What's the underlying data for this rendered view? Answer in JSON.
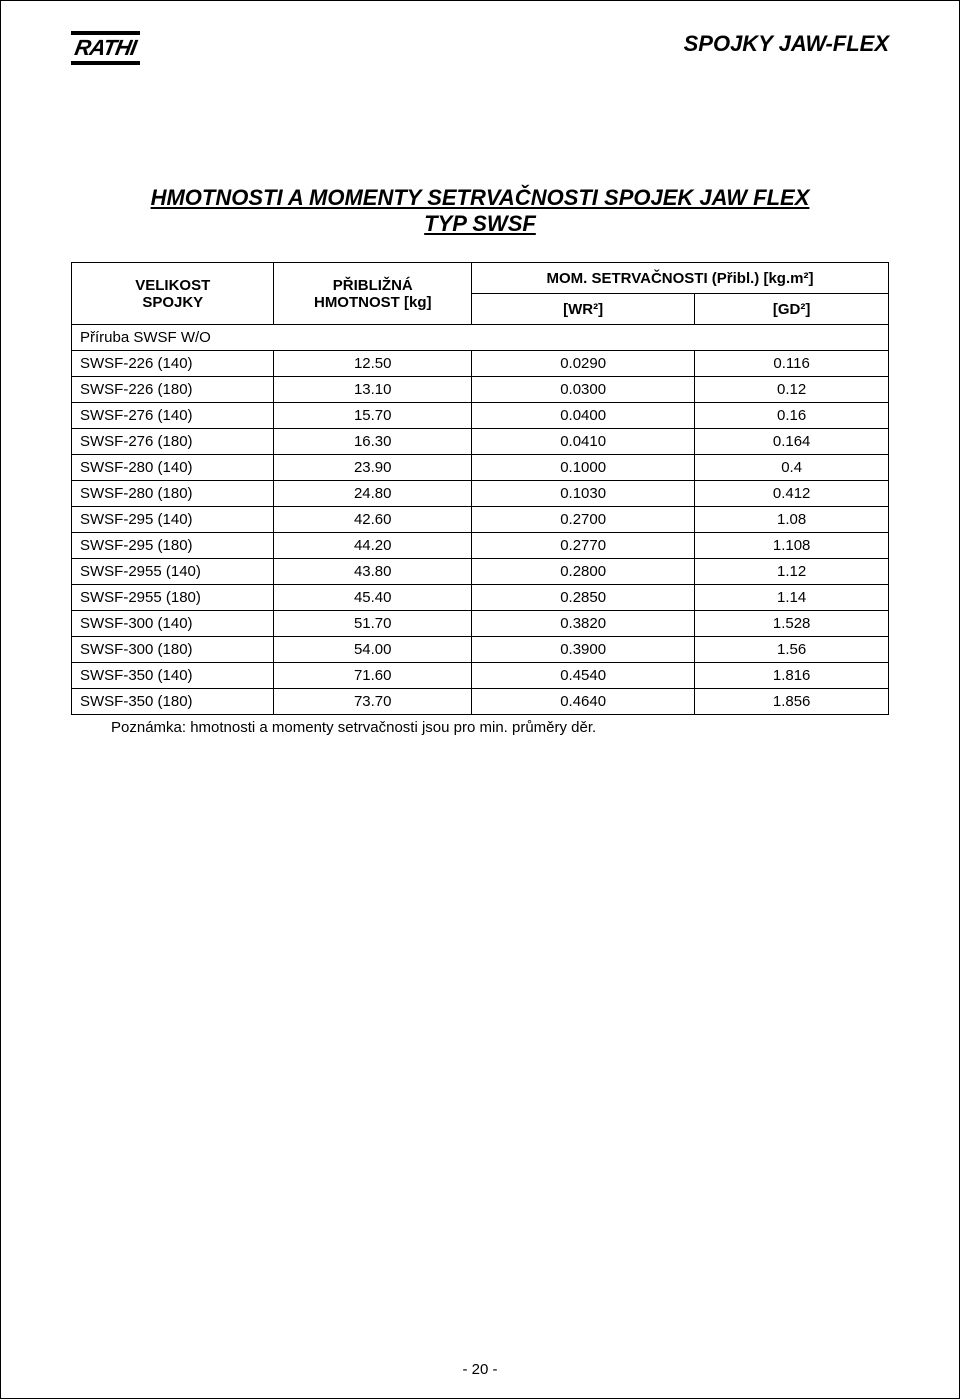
{
  "header": {
    "logo_text": "RATHI",
    "doc_title": "SPOJKY JAW-FLEX"
  },
  "section": {
    "line1": "HMOTNOSTI A MOMENTY SETRVAČNOSTI SPOJEK JAW FLEX",
    "line2": "TYP SWSF"
  },
  "table": {
    "header": {
      "col1_a": "VELIKOST",
      "col1_b": "SPOJKY",
      "col2_a": "PŘIBLIŽNÁ",
      "col2_b": "HMOTNOST  [kg]",
      "col34_top": "MOM. SETRVAČNOSTI (Přibl.)  [kg.m²]",
      "col3": "[WR²]",
      "col4": "[GD²]"
    },
    "group_row": "Příruba SWSF W/O",
    "rows": [
      {
        "c1": "SWSF-226 (140)",
        "c2": "12.50",
        "c3": "0.0290",
        "c4": "0.116"
      },
      {
        "c1": "SWSF-226 (180)",
        "c2": "13.10",
        "c3": "0.0300",
        "c4": "0.12"
      },
      {
        "c1": "SWSF-276 (140)",
        "c2": "15.70",
        "c3": "0.0400",
        "c4": "0.16"
      },
      {
        "c1": "SWSF-276 (180)",
        "c2": "16.30",
        "c3": "0.0410",
        "c4": "0.164"
      },
      {
        "c1": "SWSF-280 (140)",
        "c2": "23.90",
        "c3": "0.1000",
        "c4": "0.4"
      },
      {
        "c1": "SWSF-280 (180)",
        "c2": "24.80",
        "c3": "0.1030",
        "c4": "0.412"
      },
      {
        "c1": "SWSF-295 (140)",
        "c2": "42.60",
        "c3": "0.2700",
        "c4": "1.08"
      },
      {
        "c1": "SWSF-295 (180)",
        "c2": "44.20",
        "c3": "0.2770",
        "c4": "1.108"
      },
      {
        "c1": "SWSF-2955 (140)",
        "c2": "43.80",
        "c3": "0.2800",
        "c4": "1.12"
      },
      {
        "c1": "SWSF-2955 (180)",
        "c2": "45.40",
        "c3": "0.2850",
        "c4": "1.14"
      },
      {
        "c1": "SWSF-300 (140)",
        "c2": "51.70",
        "c3": "0.3820",
        "c4": "1.528"
      },
      {
        "c1": "SWSF-300 (180)",
        "c2": "54.00",
        "c3": "0.3900",
        "c4": "1.56"
      },
      {
        "c1": "SWSF-350 (140)",
        "c2": "71.60",
        "c3": "0.4540",
        "c4": "1.816"
      },
      {
        "c1": "SWSF-350 (180)",
        "c2": "73.70",
        "c3": "0.4640",
        "c4": "1.856"
      }
    ]
  },
  "note": "Poznámka: hmotnosti a momenty setrvačnosti jsou pro min. průměry děr.",
  "footer": "- 20 -"
}
